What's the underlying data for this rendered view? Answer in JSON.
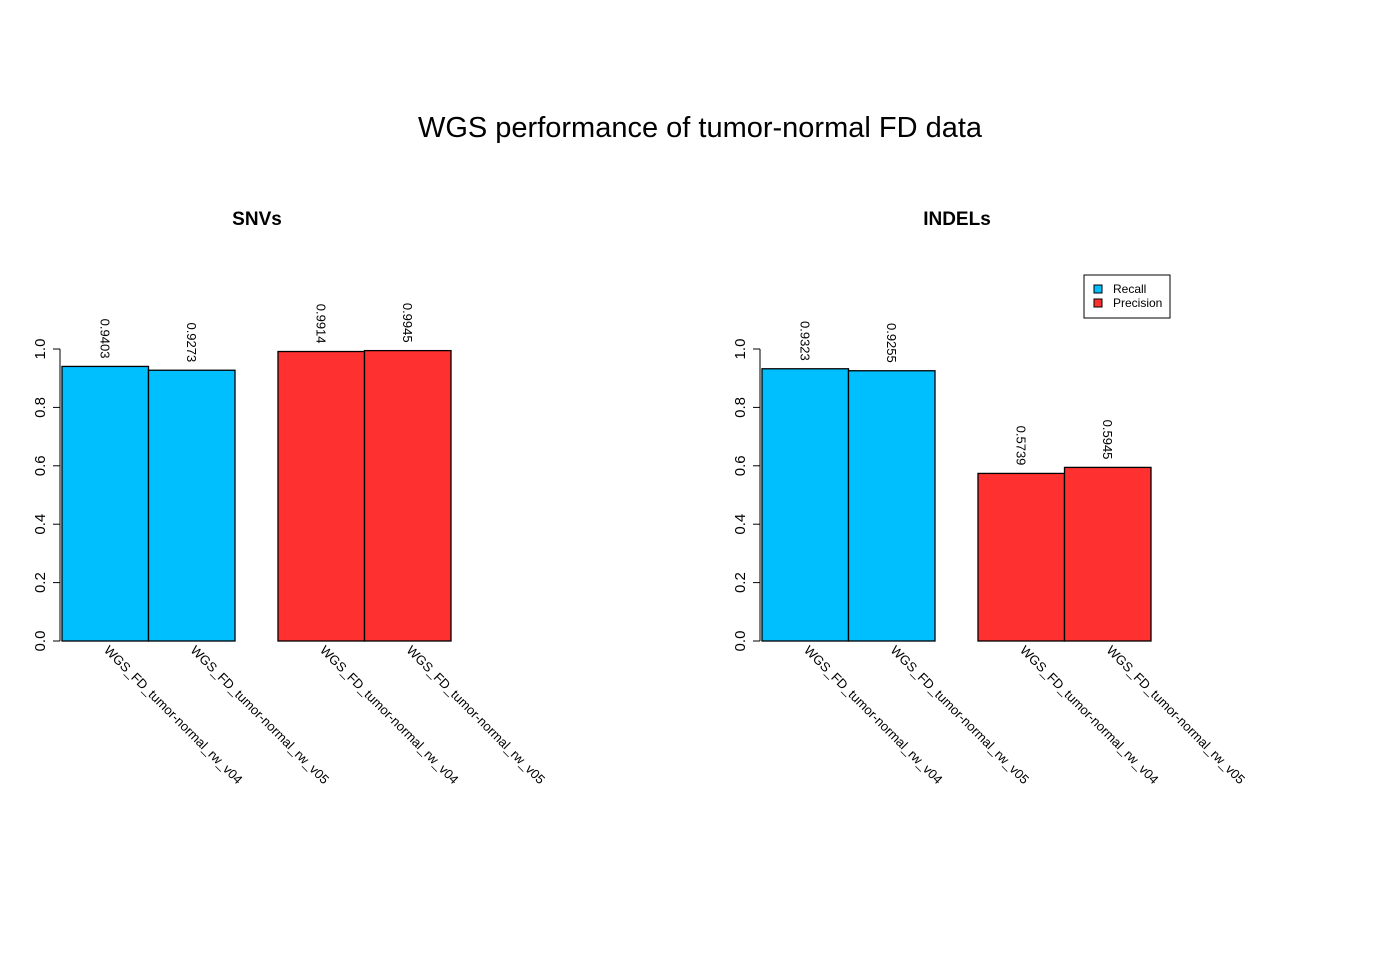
{
  "title": "WGS performance of tumor-normal FD data",
  "colors": {
    "recall": "#00BFFF",
    "precision": "#FF3030"
  },
  "legend": {
    "position": "top-right",
    "items": [
      {
        "label": "Recall",
        "color": "#00BFFF"
      },
      {
        "label": "Precision",
        "color": "#FF3030"
      }
    ]
  },
  "chart_data": [
    {
      "type": "bar",
      "title": "SNVs",
      "ylim": [
        0,
        1.0
      ],
      "yticks": [
        "0.0",
        "0.2",
        "0.4",
        "0.6",
        "0.8",
        "1.0"
      ],
      "groups": [
        {
          "categories": [
            "WGS_FD_tumor-normal_rw_v04",
            "WGS_FD_tumor-normal_rw_v05"
          ],
          "values": [
            0.9403,
            0.9273
          ],
          "labels": [
            "0.9403",
            "0.9273"
          ],
          "color": "#00BFFF"
        },
        {
          "categories": [
            "WGS_FD_tumor-normal_rw_v04",
            "WGS_FD_tumor-normal_rw_v05"
          ],
          "values": [
            0.9914,
            0.9945
          ],
          "labels": [
            "0.9914",
            "0.9945"
          ],
          "color": "#FF3030"
        }
      ]
    },
    {
      "type": "bar",
      "title": "INDELs",
      "ylim": [
        0,
        1.0
      ],
      "yticks": [
        "0.0",
        "0.2",
        "0.4",
        "0.6",
        "0.8",
        "1.0"
      ],
      "groups": [
        {
          "categories": [
            "WGS_FD_tumor-normal_rw_v04",
            "WGS_FD_tumor-normal_rw_v05"
          ],
          "values": [
            0.9323,
            0.9255
          ],
          "labels": [
            "0.9323",
            "0.9255"
          ],
          "color": "#00BFFF"
        },
        {
          "categories": [
            "WGS_FD_tumor-normal_rw_v04",
            "WGS_FD_tumor-normal_rw_v05"
          ],
          "values": [
            0.5739,
            0.5945
          ],
          "labels": [
            "0.5739",
            "0.5945"
          ],
          "color": "#FF3030"
        }
      ]
    }
  ]
}
